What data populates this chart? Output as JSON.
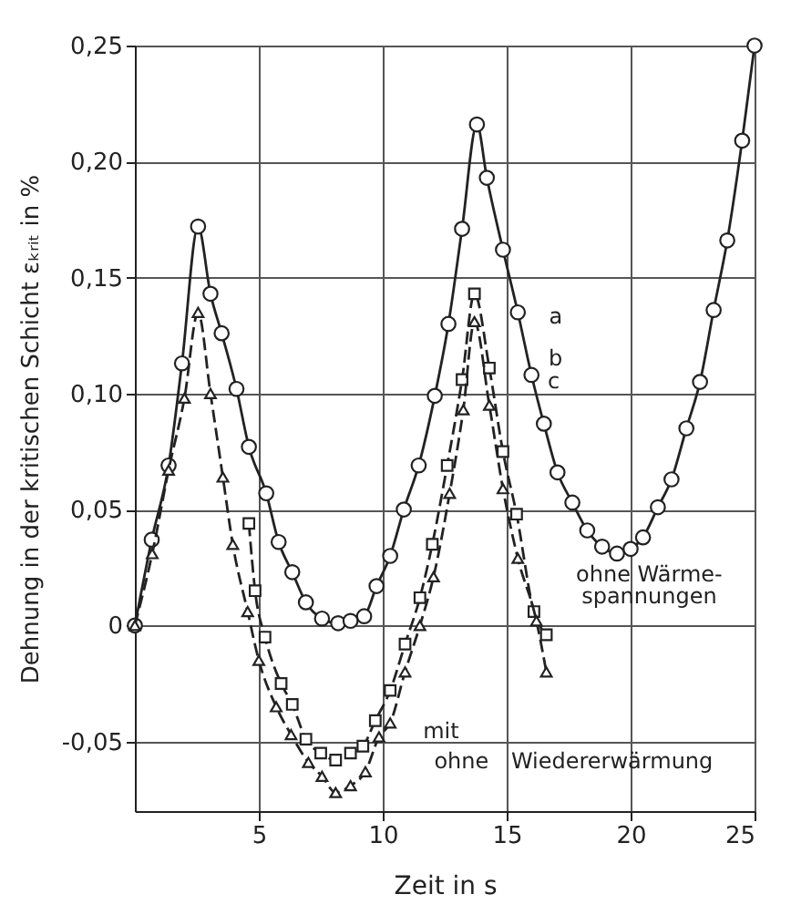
{
  "chart_data": {
    "type": "line",
    "xlabel": "Zeit in s",
    "ylabel": "Dehnung in der kritischen Schicht εₖᵣᵢₜ in %",
    "xlim": [
      0,
      25
    ],
    "xticks": [
      5,
      10,
      15,
      20,
      25
    ],
    "ylim": [
      -0.08,
      0.25
    ],
    "yticks": [
      {
        "value": -0.05,
        "label": "-0,05"
      },
      {
        "value": 0,
        "label": "0"
      },
      {
        "value": 0.05,
        "label": "0,05"
      },
      {
        "value": 0.1,
        "label": "0,10"
      },
      {
        "value": 0.15,
        "label": "0,15"
      },
      {
        "value": 0.2,
        "label": "0,20"
      },
      {
        "value": 0.25,
        "label": "0,25"
      }
    ],
    "grid": true,
    "series": [
      {
        "color": "#222222",
        "marker": "circle",
        "line_style": "solid",
        "x": [
          0,
          0.68,
          1.36,
          1.9,
          2.55,
          3.05,
          3.5,
          4.1,
          4.6,
          5.3,
          5.8,
          6.35,
          6.9,
          7.55,
          8.2,
          8.7,
          9.25,
          9.75,
          10.3,
          10.85,
          11.45,
          12.1,
          12.65,
          13.2,
          13.8,
          14.2,
          14.85,
          15.45,
          16.0,
          16.5,
          17.05,
          17.65,
          18.25,
          18.85,
          19.45,
          20.0,
          20.5,
          21.1,
          21.65,
          22.25,
          22.8,
          23.35,
          23.9,
          24.5,
          25.0
        ],
        "values": [
          0,
          0.037,
          0.069,
          0.113,
          0.172,
          0.143,
          0.126,
          0.102,
          0.077,
          0.057,
          0.036,
          0.023,
          0.01,
          0.003,
          0.001,
          0.002,
          0.004,
          0.017,
          0.03,
          0.05,
          0.069,
          0.099,
          0.13,
          0.171,
          0.216,
          0.193,
          0.162,
          0.135,
          0.108,
          0.087,
          0.066,
          0.053,
          0.041,
          0.034,
          0.031,
          0.033,
          0.038,
          0.051,
          0.063,
          0.085,
          0.105,
          0.136,
          0.166,
          0.209,
          0.25
        ]
      },
      {
        "color": "#222222",
        "marker": "square",
        "line_style": "dashed",
        "x": [
          4.6,
          4.85,
          5.25,
          5.9,
          6.35,
          6.9,
          7.5,
          8.1,
          8.7,
          9.2,
          9.7,
          10.3,
          10.9,
          11.5,
          12.0,
          12.6,
          13.2,
          13.7,
          14.3,
          14.85,
          15.4,
          16.1,
          16.6
        ],
        "values": [
          0.044,
          0.015,
          -0.005,
          -0.025,
          -0.034,
          -0.049,
          -0.055,
          -0.058,
          -0.055,
          -0.052,
          -0.041,
          -0.028,
          -0.008,
          0.012,
          0.035,
          0.069,
          0.106,
          0.143,
          0.111,
          0.075,
          0.048,
          0.006,
          -0.004
        ]
      },
      {
        "color": "#222222",
        "marker": "triangle",
        "line_style": "dashed",
        "x": [
          0,
          0.7,
          1.36,
          2.0,
          2.55,
          3.05,
          3.55,
          3.95,
          4.55,
          5.0,
          5.7,
          6.3,
          7.0,
          7.55,
          8.1,
          8.7,
          9.3,
          9.85,
          10.3,
          10.9,
          11.5,
          12.05,
          12.7,
          13.25,
          13.7,
          14.3,
          14.85,
          15.45,
          16.2,
          16.6
        ],
        "values": [
          0,
          0.031,
          0.067,
          0.098,
          0.135,
          0.1,
          0.064,
          0.035,
          0.006,
          -0.015,
          -0.035,
          -0.047,
          -0.059,
          -0.065,
          -0.072,
          -0.069,
          -0.063,
          -0.048,
          -0.042,
          -0.02,
          0.0,
          0.021,
          0.057,
          0.093,
          0.131,
          0.095,
          0.059,
          0.029,
          0.002,
          -0.02
        ]
      }
    ],
    "annotations": [
      "a",
      "b",
      "c",
      "ohne Wärme-\nspannungen",
      "mit",
      "ohne",
      "Wiedererwärmung"
    ]
  }
}
